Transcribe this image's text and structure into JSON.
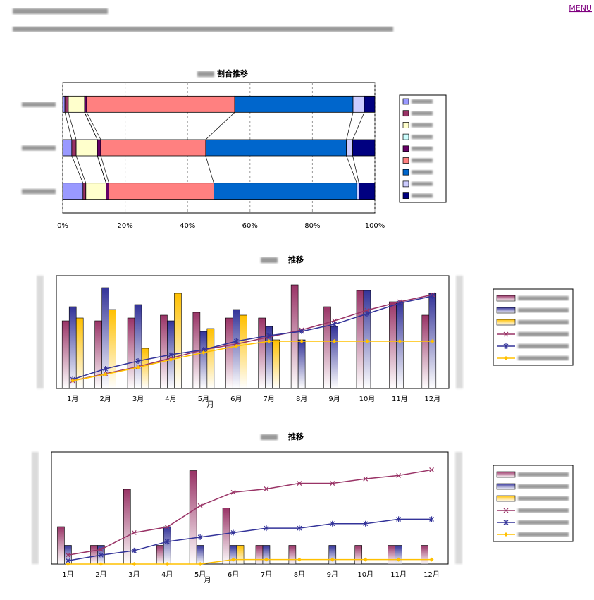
{
  "menu": "MENU",
  "chart_data": [
    {
      "type": "barh_stacked",
      "title": "割合推移",
      "categories": [
        null,
        null,
        null
      ],
      "xlim": [
        0,
        100
      ],
      "xticks": [
        {
          "value": 0,
          "label": "0%"
        },
        {
          "value": 20,
          "label": "20%"
        },
        {
          "value": 40,
          "label": "40%"
        },
        {
          "value": 60,
          "label": "60%"
        },
        {
          "value": 80,
          "label": "80%"
        },
        {
          "value": 100,
          "label": "100%"
        }
      ],
      "grid": true,
      "series": [
        {
          "name": null,
          "color": "#9999ff",
          "values": [
            0.7,
            2.9,
            6.5
          ]
        },
        {
          "name": null,
          "color": "#993366",
          "values": [
            1.1,
            1.4,
            0.9
          ]
        },
        {
          "name": null,
          "color": "#ffffcc",
          "values": [
            5.2,
            6.8,
            6.5
          ]
        },
        {
          "name": null,
          "color": "#ccffff",
          "values": [
            0,
            0,
            0
          ]
        },
        {
          "name": null,
          "color": "#660066",
          "values": [
            0.7,
            1.1,
            0.9
          ]
        },
        {
          "name": null,
          "color": "#ff8080",
          "values": [
            47.4,
            33.6,
            33.6
          ]
        },
        {
          "name": null,
          "color": "#0066cc",
          "values": [
            37.9,
            45.1,
            45.8
          ]
        },
        {
          "name": null,
          "color": "#ccccff",
          "values": [
            3.6,
            2.0,
            0.7
          ]
        },
        {
          "name": null,
          "color": "#000080",
          "values": [
            3.4,
            7.1,
            5.1
          ]
        }
      ]
    },
    {
      "type": "combo",
      "title": "推移",
      "xlabel": "月",
      "categories": [
        "1月",
        "2月",
        "3月",
        "4月",
        "5月",
        "6月",
        "7月",
        "8月",
        "9月",
        "10月",
        "11月",
        "12月"
      ],
      "ylim": [
        0,
        8
      ],
      "y2lim": [
        0,
        8
      ],
      "series": [
        {
          "name": null,
          "type": "bar",
          "color": "#993366",
          "values": [
            4.8,
            4.8,
            5.0,
            5.2,
            5.4,
            5.0,
            5.0,
            7.35,
            5.8,
            6.95,
            6.15,
            5.2
          ]
        },
        {
          "name": null,
          "type": "bar",
          "color": "#333399",
          "values": [
            5.8,
            7.15,
            5.95,
            4.8,
            4.05,
            5.6,
            4.4,
            3.45,
            4.4,
            6.95,
            6.15,
            6.75
          ]
        },
        {
          "name": null,
          "type": "bar",
          "color": "#ffc000",
          "values": [
            5.0,
            5.6,
            2.85,
            6.75,
            4.25,
            5.2,
            3.45,
            null,
            null,
            null,
            null,
            null
          ]
        },
        {
          "name": null,
          "type": "line",
          "axis": "y2",
          "marker": "x",
          "color": "#993366",
          "values": [
            0.55,
            1.05,
            1.55,
            2.15,
            2.75,
            3.15,
            3.65,
            4.15,
            4.8,
            5.55,
            6.15,
            6.65
          ]
        },
        {
          "name": null,
          "type": "line",
          "axis": "y2",
          "marker": "star",
          "color": "#333399",
          "values": [
            0.65,
            1.4,
            1.95,
            2.4,
            2.75,
            3.35,
            3.75,
            4.05,
            4.55,
            5.3,
            6.05,
            6.55
          ]
        },
        {
          "name": null,
          "type": "line",
          "axis": "y2",
          "marker": "diamond",
          "color": "#ffc000",
          "values": [
            0.55,
            1.0,
            1.5,
            2.05,
            2.55,
            3.0,
            3.35,
            3.35,
            3.35,
            3.35,
            3.35,
            3.35
          ]
        }
      ]
    },
    {
      "type": "combo",
      "title": "推移",
      "xlabel": "月",
      "categories": [
        "1月",
        "2月",
        "3月",
        "4月",
        "5月",
        "6月",
        "7月",
        "8月",
        "9月",
        "10月",
        "11月",
        "12月"
      ],
      "ylim": [
        0,
        6
      ],
      "y2lim": [
        0,
        5
      ],
      "series": [
        {
          "name": null,
          "type": "bar",
          "color": "#993366",
          "values": [
            2,
            1,
            4,
            1,
            5,
            3,
            1,
            1,
            0,
            1,
            1,
            1
          ]
        },
        {
          "name": null,
          "type": "bar",
          "color": "#333399",
          "values": [
            1,
            1,
            0,
            2,
            1,
            1,
            1,
            0,
            1,
            0,
            1,
            0
          ]
        },
        {
          "name": null,
          "type": "bar",
          "color": "#ffc000",
          "values": [
            0,
            0,
            0,
            0,
            0,
            1,
            0,
            0,
            0,
            0,
            0,
            0
          ]
        },
        {
          "name": null,
          "type": "line",
          "axis": "y2",
          "marker": "x",
          "color": "#993366",
          "values": [
            0.4,
            0.65,
            1.4,
            1.65,
            2.6,
            3.2,
            3.35,
            3.6,
            3.6,
            3.8,
            3.95,
            4.2
          ]
        },
        {
          "name": null,
          "type": "line",
          "axis": "y2",
          "marker": "star",
          "color": "#333399",
          "values": [
            0.15,
            0.4,
            0.6,
            1.0,
            1.2,
            1.4,
            1.6,
            1.6,
            1.8,
            1.8,
            2.0,
            2.0
          ]
        },
        {
          "name": null,
          "type": "line",
          "axis": "y2",
          "marker": "diamond",
          "color": "#ffc000",
          "values": [
            0,
            0,
            0,
            0,
            0,
            0.2,
            0.2,
            0.2,
            0.2,
            0.2,
            0.2,
            0.2
          ]
        }
      ]
    }
  ]
}
